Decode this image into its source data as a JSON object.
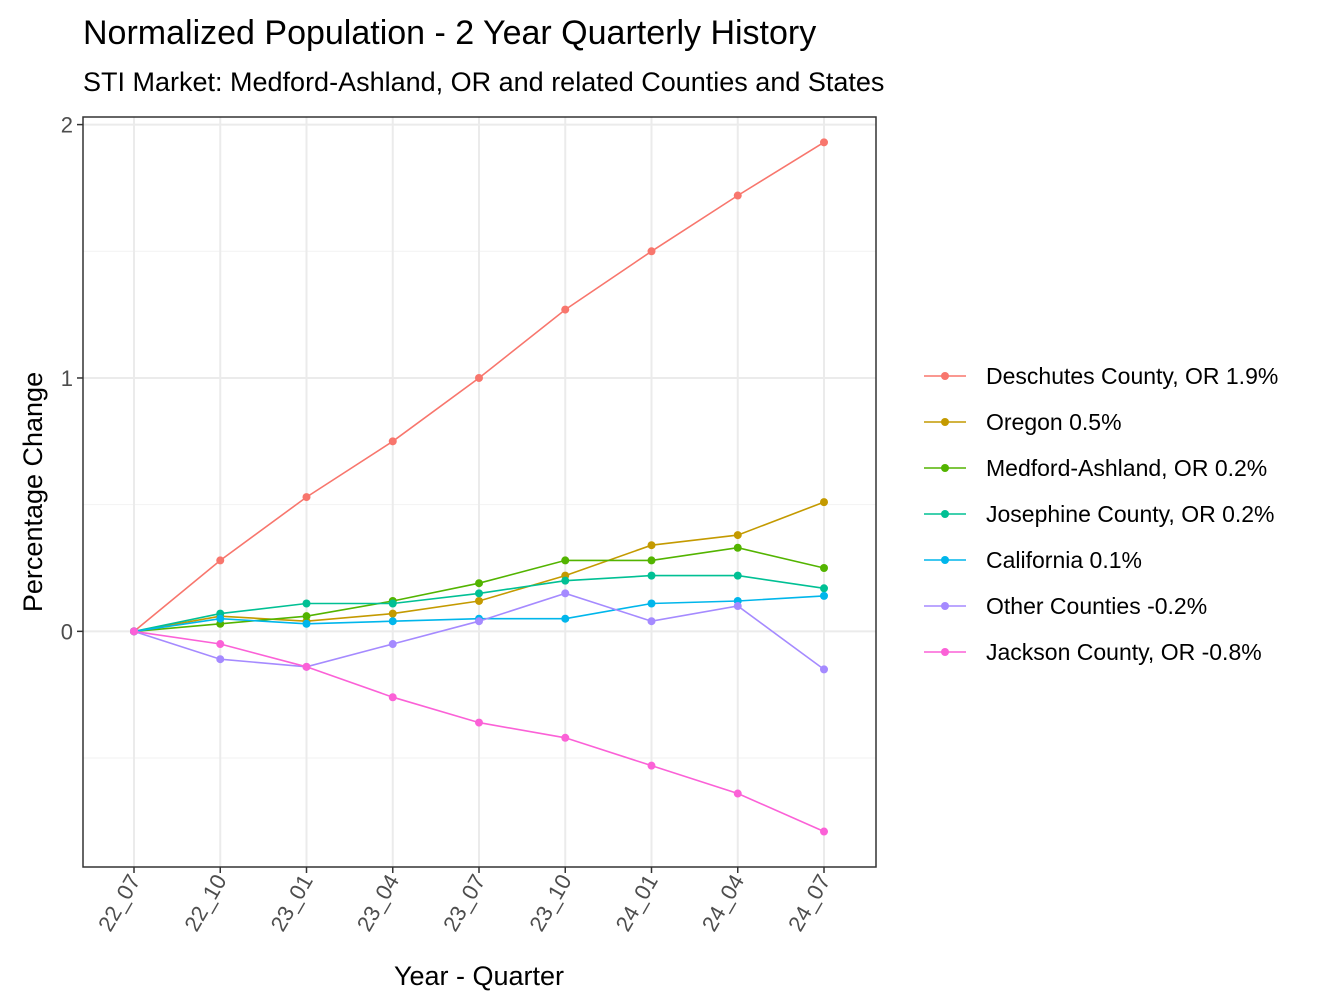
{
  "chart_data": {
    "type": "line",
    "title": "Normalized Population - 2 Year Quarterly History",
    "subtitle": "STI Market: Medford-Ashland, OR and related Counties and States",
    "xlabel": "Year - Quarter",
    "ylabel": "Percentage Change",
    "categories": [
      "22_07",
      "22_10",
      "23_01",
      "23_04",
      "23_07",
      "23_10",
      "24_01",
      "24_04",
      "24_07"
    ],
    "ylim": [
      -0.93,
      2.03
    ],
    "yticks": [
      0,
      1,
      2
    ],
    "grid": true,
    "legend_position": "right",
    "series": [
      {
        "name": "Deschutes County, OR 1.9%",
        "color": "#F8766D",
        "values": [
          0,
          0.28,
          0.53,
          0.75,
          1.0,
          1.27,
          1.5,
          1.72,
          1.93
        ]
      },
      {
        "name": "Oregon 0.5%",
        "color": "#C49A00",
        "values": [
          0,
          0.06,
          0.04,
          0.07,
          0.12,
          0.22,
          0.34,
          0.38,
          0.51
        ]
      },
      {
        "name": "Medford-Ashland, OR 0.2%",
        "color": "#53B400",
        "values": [
          0,
          0.03,
          0.06,
          0.12,
          0.19,
          0.28,
          0.28,
          0.33,
          0.25
        ]
      },
      {
        "name": "Josephine County, OR 0.2%",
        "color": "#00C094",
        "values": [
          0,
          0.07,
          0.11,
          0.11,
          0.15,
          0.2,
          0.22,
          0.22,
          0.17
        ]
      },
      {
        "name": "California 0.1%",
        "color": "#00B6EB",
        "values": [
          0,
          0.05,
          0.03,
          0.04,
          0.05,
          0.05,
          0.11,
          0.12,
          0.14
        ]
      },
      {
        "name": "Other Counties -0.2%",
        "color": "#A58AFF",
        "values": [
          0,
          -0.11,
          -0.14,
          -0.05,
          0.04,
          0.15,
          0.04,
          0.1,
          -0.15
        ]
      },
      {
        "name": "Jackson County, OR -0.8%",
        "color": "#FB61D7",
        "values": [
          0,
          -0.05,
          -0.14,
          -0.26,
          -0.36,
          -0.42,
          -0.53,
          -0.64,
          -0.79
        ]
      }
    ]
  }
}
